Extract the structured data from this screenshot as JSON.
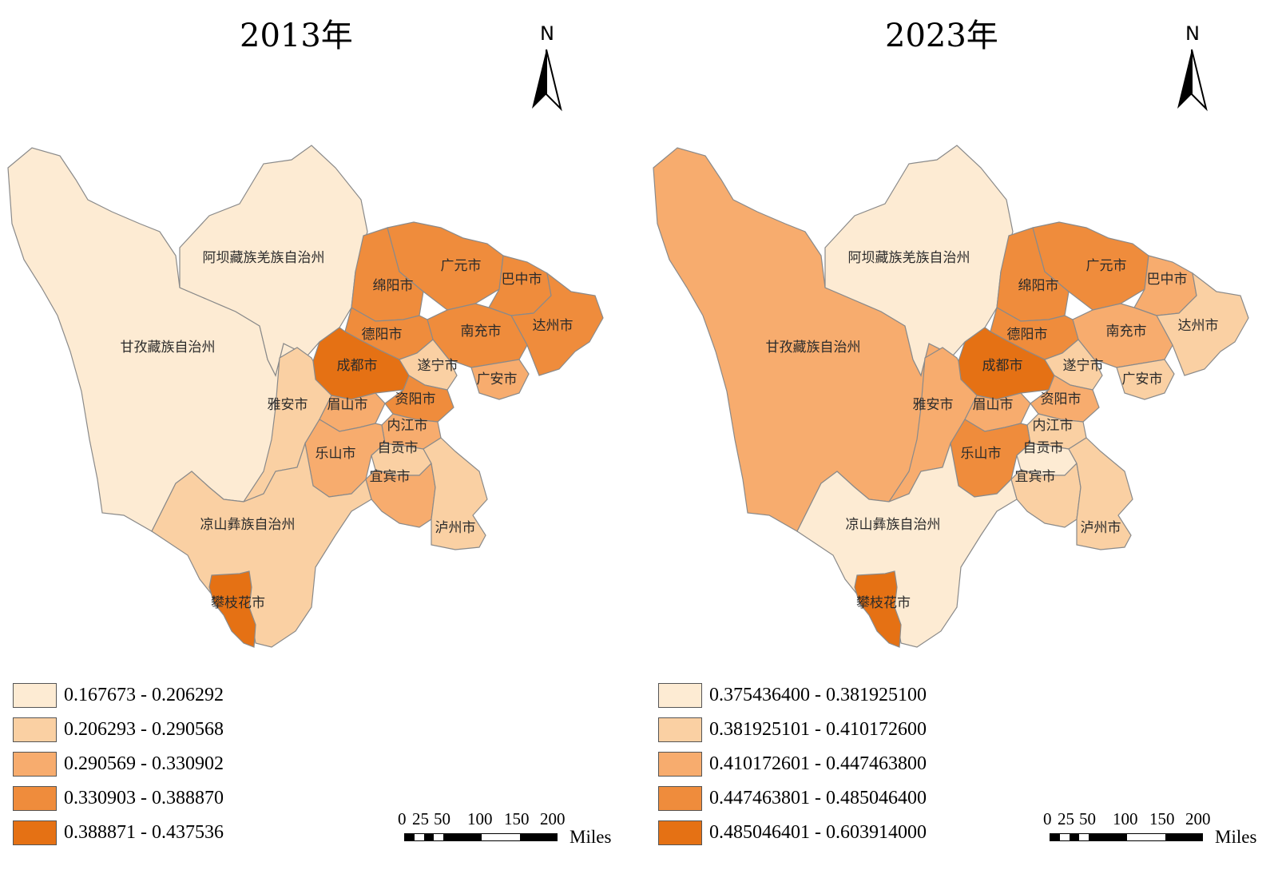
{
  "colors": {
    "c1": "#fdebd3",
    "c2": "#fad0a3",
    "c3": "#f7ac6e",
    "c4": "#ef8c3c",
    "c5": "#e57114"
  },
  "north_label": "N",
  "scale": {
    "ticks": [
      "0",
      "25",
      "50",
      "100",
      "150",
      "200"
    ],
    "unit": "Miles"
  },
  "region_names": {
    "aba": "阿坝藏族羌族自治州",
    "ganzi": "甘孜藏族自治州",
    "liangshan": "凉山彝族自治州",
    "panzhihua": "攀枝花市",
    "mianyang": "绵阳市",
    "guangyuan": "广元市",
    "bazhong": "巴中市",
    "dazhou": "达州市",
    "nanchong": "南充市",
    "deyang": "德阳市",
    "chengdu": "成都市",
    "suining": "遂宁市",
    "guangan": "广安市",
    "yaan": "雅安市",
    "meishan": "眉山市",
    "ziyang": "资阳市",
    "neijiang": "内江市",
    "leshan": "乐山市",
    "zigong": "自贡市",
    "yibin": "宜宾市",
    "luzhou": "泸州市"
  },
  "maps": [
    {
      "title": "2013年",
      "legend": [
        "0.167673 - 0.206292",
        "0.206293 - 0.290568",
        "0.290569 - 0.330902",
        "0.330903 - 0.388870",
        "0.388871 - 0.437536"
      ],
      "classes": {
        "ganzi": 1,
        "aba": 1,
        "liangshan": 2,
        "panzhihua": 5,
        "mianyang": 4,
        "guangyuan": 4,
        "bazhong": 4,
        "dazhou": 4,
        "nanchong": 4,
        "deyang": 4,
        "chengdu": 5,
        "suining": 2,
        "guangan": 3,
        "yaan": 2,
        "meishan": 3,
        "ziyang": 4,
        "neijiang": 3,
        "leshan": 3,
        "zigong": 2,
        "yibin": 3,
        "luzhou": 2
      }
    },
    {
      "title": "2023年",
      "legend": [
        "0.375436400 - 0.381925100",
        "0.381925101 - 0.410172600",
        "0.410172601 - 0.447463800",
        "0.447463801 - 0.485046400",
        "0.485046401 - 0.603914000"
      ],
      "classes": {
        "ganzi": 3,
        "aba": 1,
        "liangshan": 1,
        "panzhihua": 5,
        "mianyang": 4,
        "guangyuan": 4,
        "bazhong": 3,
        "dazhou": 2,
        "nanchong": 3,
        "deyang": 4,
        "chengdu": 5,
        "suining": 2,
        "guangan": 2,
        "yaan": 3,
        "meishan": 3,
        "ziyang": 3,
        "neijiang": 2,
        "leshan": 4,
        "zigong": 1,
        "yibin": 2,
        "luzhou": 2
      }
    }
  ]
}
